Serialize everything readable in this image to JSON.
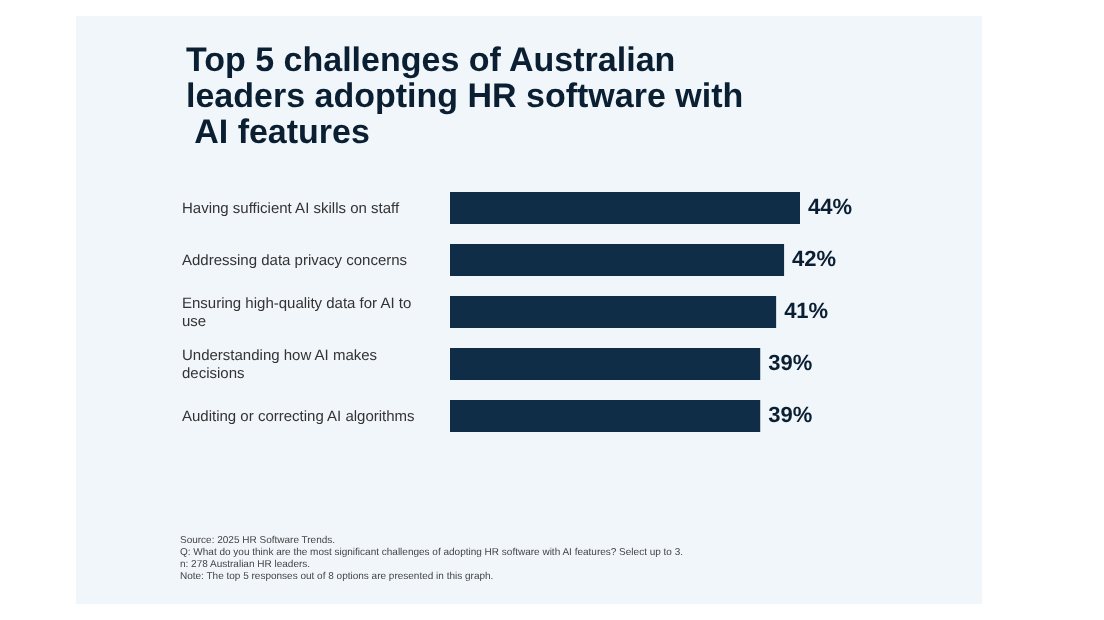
{
  "chart_data": {
    "type": "bar",
    "orientation": "horizontal",
    "title": "Top 5 challenges of Australian leaders adopting HR software with AI features",
    "categories": [
      "Having sufficient AI skills on staff",
      "Addressing data privacy concerns",
      "Ensuring high-quality data for AI to use",
      "Understanding how AI makes decisions",
      "Auditing or correcting AI algorithms"
    ],
    "values": [
      44,
      42,
      41,
      39,
      39
    ],
    "color": "#0f2d47",
    "value_labels": [
      "44%",
      "42%",
      "41%",
      "39%",
      "39%"
    ],
    "annotations": [
      "Source: 2025 HR Software Trends.",
      "Q: What do you think are the most significant challenges of adopting HR software with AI features? Select up to 3.",
      "n: 278 Australian HR leaders.",
      "Note: The top 5 responses out of 8 options are presented in this graph."
    ]
  }
}
